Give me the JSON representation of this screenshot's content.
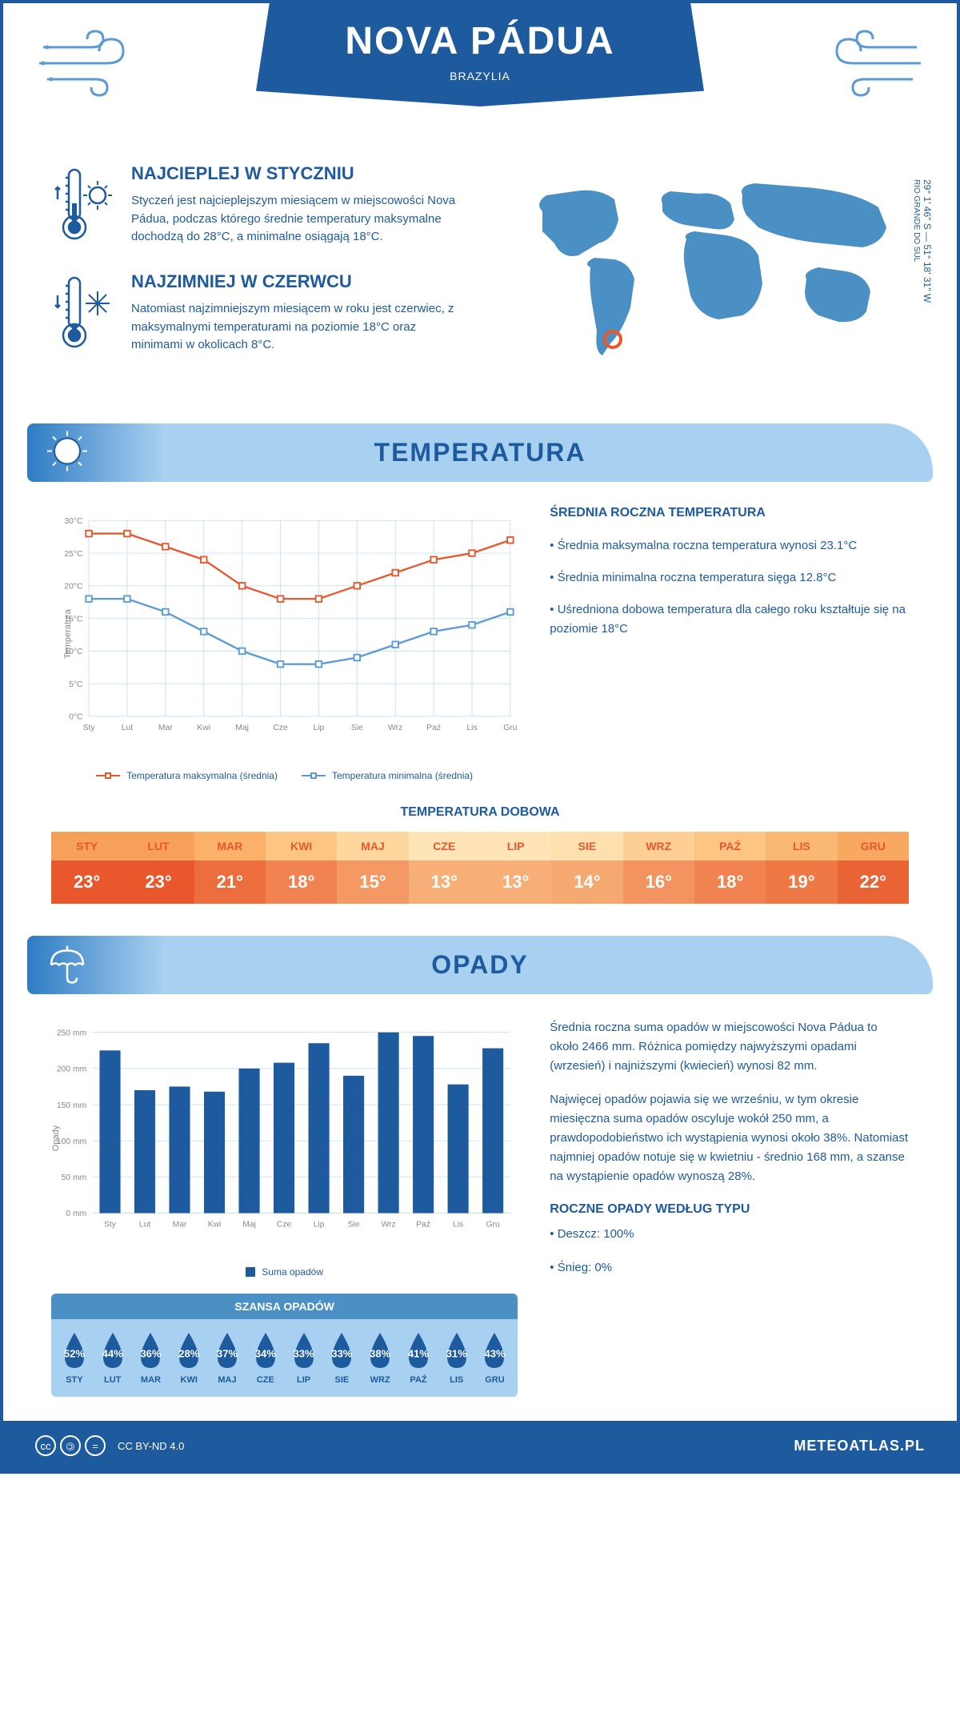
{
  "header": {
    "title": "NOVA PÁDUA",
    "subtitle": "BRAZYLIA"
  },
  "coords": {
    "lat": "29° 1' 46\" S",
    "lon": "51° 18' 31\" W",
    "region": "RIO GRANDE DO SUL"
  },
  "hot": {
    "title": "NAJCIEPLEJ W STYCZNIU",
    "text": "Styczeń jest najcieplejszym miesiącem w miejscowości Nova Pádua, podczas którego średnie temperatury maksymalne dochodzą do 28°C, a minimalne osiągają 18°C."
  },
  "cold": {
    "title": "NAJZIMNIEJ W CZERWCU",
    "text": "Natomiast najzimniejszym miesiącem w roku jest czerwiec, z maksymalnymi temperaturami na poziomie 18°C oraz minimami w okolicach 8°C."
  },
  "section_temp": "TEMPERATURA",
  "section_precip": "OPADY",
  "temp_chart": {
    "type": "line",
    "months": [
      "Sty",
      "Lut",
      "Mar",
      "Kwi",
      "Maj",
      "Cze",
      "Lip",
      "Sie",
      "Wrz",
      "Paź",
      "Lis",
      "Gru"
    ],
    "max_values": [
      28,
      28,
      26,
      24,
      20,
      18,
      18,
      20,
      22,
      24,
      25,
      27
    ],
    "min_values": [
      18,
      18,
      16,
      13,
      10,
      8,
      8,
      9,
      11,
      13,
      14,
      16
    ],
    "max_color": "#e8582c",
    "min_color": "#5b9bd5",
    "ylim": [
      0,
      30
    ],
    "ytick_step": 5,
    "ylabel": "Temperatura",
    "grid_color": "#c8e0f5",
    "legend_max": "Temperatura maksymalna (średnia)",
    "legend_min": "Temperatura minimalna (średnia)"
  },
  "temp_stats": {
    "title": "ŚREDNIA ROCZNA TEMPERATURA",
    "line1": "• Średnia maksymalna roczna temperatura wynosi 23.1°C",
    "line2": "• Średnia minimalna roczna temperatura sięga 12.8°C",
    "line3": "• Uśredniona dobowa temperatura dla całego roku kształtuje się na poziomie 18°C"
  },
  "daily_temp": {
    "title": "TEMPERATURA DOBOWA",
    "months": [
      "STY",
      "LUT",
      "MAR",
      "KWI",
      "MAJ",
      "CZE",
      "LIP",
      "SIE",
      "WRZ",
      "PAŹ",
      "LIS",
      "GRU"
    ],
    "values": [
      "23°",
      "23°",
      "21°",
      "18°",
      "15°",
      "13°",
      "13°",
      "14°",
      "16°",
      "18°",
      "19°",
      "22°"
    ],
    "header_bg": [
      "#f7a05a",
      "#f7a05a",
      "#fbb169",
      "#fdc583",
      "#fed79e",
      "#ffe4b8",
      "#ffe4b8",
      "#fedfae",
      "#fecf94",
      "#fdc583",
      "#fbb872",
      "#f9a861"
    ],
    "header_color": "#e8582c",
    "value_bg": [
      "#e8582c",
      "#e8582c",
      "#ec6e3e",
      "#f08351",
      "#f49964",
      "#f7ae77",
      "#f7ae77",
      "#f6a871",
      "#f39460",
      "#f08351",
      "#ee7944",
      "#ea6335"
    ]
  },
  "precip_chart": {
    "type": "bar",
    "months": [
      "Sty",
      "Lut",
      "Mar",
      "Kwi",
      "Maj",
      "Cze",
      "Lip",
      "Sie",
      "Wrz",
      "Paź",
      "Lis",
      "Gru"
    ],
    "values": [
      225,
      170,
      175,
      168,
      200,
      208,
      235,
      190,
      250,
      245,
      178,
      228
    ],
    "bar_color": "#1e5a9e",
    "ylim": [
      0,
      250
    ],
    "ytick_step": 50,
    "ylabel": "Opady",
    "legend": "Suma opadów",
    "grid_color": "#c8e0f5"
  },
  "precip_text": {
    "p1": "Średnia roczna suma opadów w miejscowości Nova Pádua to około 2466 mm. Różnica pomiędzy najwyższymi opadami (wrzesień) i najniższymi (kwiecień) wynosi 82 mm.",
    "p2": "Najwięcej opadów pojawia się we wrześniu, w tym okresie miesięczna suma opadów oscyluje wokół 250 mm, a prawdopodobieństwo ich wystąpienia wynosi około 38%. Natomiast najmniej opadów notuje się w kwietniu - średnio 168 mm, a szanse na wystąpienie opadów wynoszą 28%."
  },
  "chance": {
    "title": "SZANSA OPADÓW",
    "months": [
      "STY",
      "LUT",
      "MAR",
      "KWI",
      "MAJ",
      "CZE",
      "LIP",
      "SIE",
      "WRZ",
      "PAŹ",
      "LIS",
      "GRU"
    ],
    "values": [
      "52%",
      "44%",
      "36%",
      "28%",
      "37%",
      "34%",
      "33%",
      "33%",
      "38%",
      "41%",
      "31%",
      "43%"
    ],
    "drop_color": "#1e5a9e"
  },
  "precip_type": {
    "title": "ROCZNE OPADY WEDŁUG TYPU",
    "rain": "• Deszcz: 100%",
    "snow": "• Śnieg: 0%"
  },
  "footer": {
    "license": "CC BY-ND 4.0",
    "site": "METEOATLAS.PL"
  }
}
